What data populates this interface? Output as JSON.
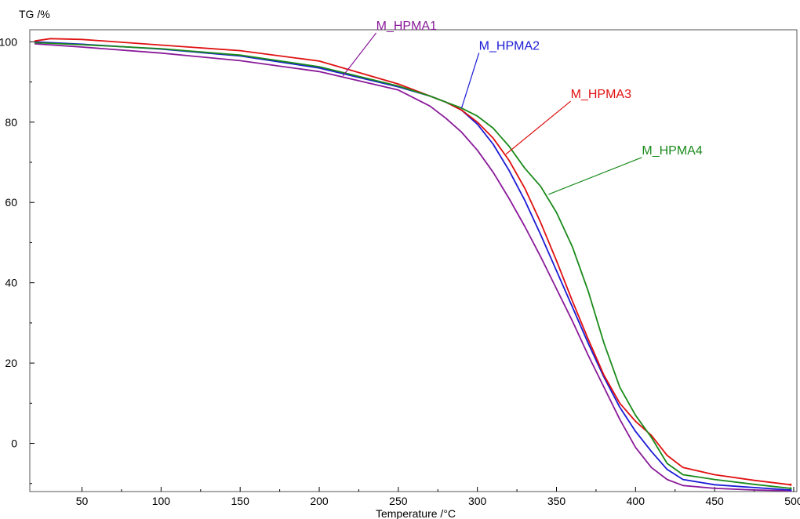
{
  "chart_data": {
    "type": "line",
    "title": "",
    "xlabel": "Temperature /°C",
    "ylabel": "TG /%",
    "xlim": [
      17,
      502
    ],
    "ylim": [
      -12,
      103
    ],
    "x_ticks": [
      50,
      100,
      150,
      200,
      250,
      300,
      350,
      400,
      450,
      500
    ],
    "y_ticks": [
      0,
      20,
      40,
      60,
      80,
      100
    ],
    "x_tick_labels": [
      "50",
      "100",
      "150",
      "200",
      "250",
      "300",
      "350",
      "400",
      "450",
      "500"
    ],
    "y_tick_labels": [
      "0",
      "20",
      "40",
      "60",
      "80",
      "100"
    ],
    "grid": false,
    "legend": "inline labels with leader lines",
    "series": [
      {
        "name": "M_HPMA1",
        "color": "#8a1a9a",
        "label_at": [
          236,
          103
        ],
        "leader_to": [
          215,
          91.5
        ],
        "points": [
          [
            20,
            99.5
          ],
          [
            50,
            98.7
          ],
          [
            100,
            97.2
          ],
          [
            150,
            95.3
          ],
          [
            200,
            92.6
          ],
          [
            250,
            88
          ],
          [
            270,
            84
          ],
          [
            280,
            81
          ],
          [
            290,
            77.5
          ],
          [
            300,
            73
          ],
          [
            310,
            67.5
          ],
          [
            320,
            61
          ],
          [
            330,
            54
          ],
          [
            340,
            46.5
          ],
          [
            350,
            38.5
          ],
          [
            360,
            30.5
          ],
          [
            370,
            22
          ],
          [
            380,
            14
          ],
          [
            390,
            6
          ],
          [
            400,
            -1
          ],
          [
            410,
            -6
          ],
          [
            420,
            -9
          ],
          [
            430,
            -10.5
          ],
          [
            450,
            -11.2
          ],
          [
            475,
            -11.6
          ],
          [
            498,
            -11.8
          ]
        ]
      },
      {
        "name": "M_HPMA2",
        "color": "#1a1ad6",
        "label_at": [
          301,
          98
        ],
        "leader_to": [
          290,
          83.5
        ],
        "points": [
          [
            20,
            100
          ],
          [
            50,
            99.4
          ],
          [
            100,
            98.2
          ],
          [
            150,
            96.5
          ],
          [
            200,
            93.5
          ],
          [
            250,
            88.8
          ],
          [
            270,
            86.5
          ],
          [
            280,
            85
          ],
          [
            290,
            83
          ],
          [
            300,
            79.5
          ],
          [
            310,
            74.5
          ],
          [
            320,
            68
          ],
          [
            330,
            60.5
          ],
          [
            340,
            52
          ],
          [
            350,
            43
          ],
          [
            360,
            34
          ],
          [
            370,
            25
          ],
          [
            380,
            16.5
          ],
          [
            390,
            9
          ],
          [
            400,
            3
          ],
          [
            410,
            -2
          ],
          [
            420,
            -6.5
          ],
          [
            430,
            -9
          ],
          [
            450,
            -10.3
          ],
          [
            475,
            -11
          ],
          [
            498,
            -11.6
          ]
        ]
      },
      {
        "name": "M_HPMA3",
        "color": "#e01010",
        "label_at": [
          359,
          86
        ],
        "leader_to": [
          318,
          72
        ],
        "points": [
          [
            20,
            100.2
          ],
          [
            30,
            100.8
          ],
          [
            50,
            100.6
          ],
          [
            100,
            99.2
          ],
          [
            150,
            97.8
          ],
          [
            200,
            95.2
          ],
          [
            250,
            89.5
          ],
          [
            270,
            86.5
          ],
          [
            280,
            85
          ],
          [
            290,
            83
          ],
          [
            300,
            80
          ],
          [
            310,
            76
          ],
          [
            320,
            70.5
          ],
          [
            330,
            63.5
          ],
          [
            340,
            55
          ],
          [
            350,
            45.5
          ],
          [
            360,
            35.5
          ],
          [
            370,
            26
          ],
          [
            380,
            17
          ],
          [
            390,
            10
          ],
          [
            400,
            5.5
          ],
          [
            410,
            2
          ],
          [
            420,
            -3
          ],
          [
            430,
            -6
          ],
          [
            450,
            -7.8
          ],
          [
            475,
            -9.2
          ],
          [
            498,
            -10.3
          ]
        ]
      },
      {
        "name": "M_HPMA4",
        "color": "#1a8a1a",
        "label_at": [
          404,
          72
        ],
        "leader_to": [
          345,
          62
        ],
        "points": [
          [
            20,
            99.8
          ],
          [
            50,
            99.3
          ],
          [
            100,
            98.3
          ],
          [
            150,
            96.7
          ],
          [
            200,
            93.8
          ],
          [
            250,
            89
          ],
          [
            270,
            86.5
          ],
          [
            280,
            85
          ],
          [
            290,
            83.5
          ],
          [
            300,
            81.5
          ],
          [
            310,
            78.5
          ],
          [
            320,
            74
          ],
          [
            330,
            68.5
          ],
          [
            340,
            64
          ],
          [
            350,
            57.5
          ],
          [
            360,
            49
          ],
          [
            370,
            38
          ],
          [
            380,
            25
          ],
          [
            390,
            14
          ],
          [
            400,
            7
          ],
          [
            410,
            1.5
          ],
          [
            420,
            -5
          ],
          [
            430,
            -7.8
          ],
          [
            450,
            -9
          ],
          [
            475,
            -10.2
          ],
          [
            498,
            -11.2
          ]
        ]
      }
    ]
  }
}
